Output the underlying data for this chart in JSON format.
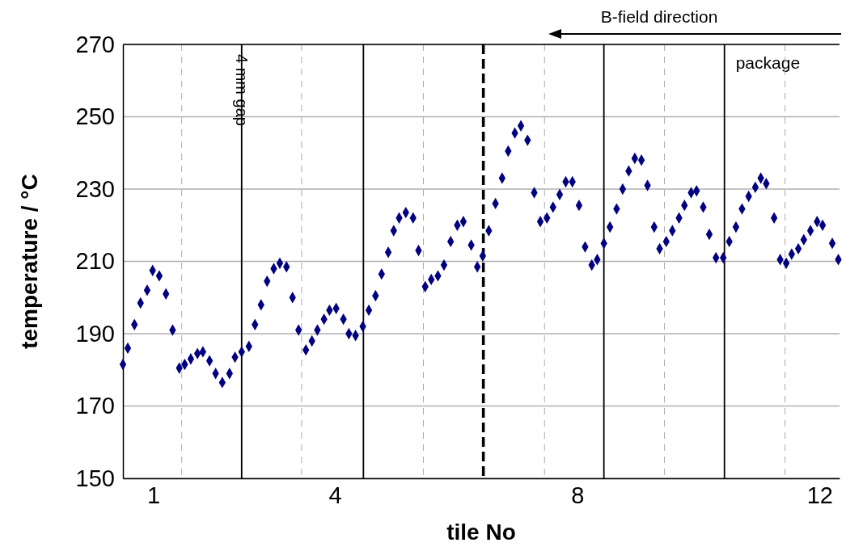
{
  "chart_data": {
    "type": "scatter",
    "xlabel": "tile No",
    "ylabel": "temperature / °C",
    "xlim": [
      0.5,
      12.33
    ],
    "xticks": [
      1,
      4,
      8,
      12
    ],
    "ylim": [
      150,
      270
    ],
    "yticks": [
      150,
      170,
      190,
      210,
      230,
      250,
      270
    ],
    "grid": "y",
    "marker": "diamond",
    "series": [
      {
        "color": "#000080",
        "x": [
          0.5,
          0.58,
          0.69,
          0.79,
          0.9,
          0.99,
          1.1,
          1.21,
          1.32,
          1.43,
          1.52,
          1.62,
          1.73,
          1.82,
          1.93,
          2.03,
          2.14,
          2.26,
          2.35,
          2.46,
          2.58,
          2.68,
          2.78,
          2.88,
          2.99,
          3.09,
          3.2,
          3.3,
          3.4,
          3.52,
          3.62,
          3.71,
          3.82,
          3.91,
          4.02,
          4.14,
          4.23,
          4.34,
          4.46,
          4.56,
          4.67,
          4.77,
          4.88,
          4.97,
          5.06,
          5.17,
          5.29,
          5.38,
          5.49,
          5.59,
          5.7,
          5.8,
          5.91,
          6.02,
          6.12,
          6.25,
          6.35,
          6.44,
          6.54,
          6.65,
          6.76,
          6.86,
          6.97,
          7.07,
          7.18,
          7.29,
          7.39,
          7.5,
          7.6,
          7.71,
          7.81,
          7.92,
          8.03,
          8.13,
          8.24,
          8.33,
          8.44,
          8.54,
          8.65,
          8.75,
          8.85,
          8.95,
          9.06,
          9.16,
          9.27,
          9.36,
          9.47,
          9.57,
          9.68,
          9.77,
          9.88,
          9.97,
          10.08,
          10.18,
          10.29,
          10.41,
          10.51,
          10.62,
          10.72,
          10.83,
          10.94,
          11.03,
          11.12,
          11.25,
          11.35,
          11.45,
          11.54,
          11.65,
          11.74,
          11.85,
          11.96,
          12.05,
          12.21,
          12.31
        ],
        "values": [
          181.5,
          186,
          192.5,
          198.5,
          202,
          207.5,
          206,
          201,
          191,
          180.5,
          181.5,
          183,
          184.5,
          185,
          182.5,
          179,
          176.5,
          179,
          183.5,
          185,
          186.5,
          192.5,
          198,
          204.5,
          208,
          209.5,
          208.5,
          200,
          191,
          185.5,
          188,
          191,
          194,
          196.5,
          197,
          194,
          190,
          189.5,
          192,
          196.5,
          200.5,
          206.5,
          212.5,
          218.5,
          222,
          223.5,
          222,
          213,
          203,
          205,
          206,
          209,
          215.5,
          220,
          221,
          214.5,
          208.5,
          211.5,
          218.5,
          226,
          233,
          240.5,
          245.5,
          247.5,
          243.5,
          229,
          221,
          222,
          225,
          228.5,
          232,
          232,
          225.5,
          214,
          209,
          210.5,
          215,
          219.5,
          224.5,
          230,
          235,
          238.5,
          238,
          231,
          219.5,
          213.5,
          215.5,
          218.5,
          222,
          225.5,
          229,
          229.5,
          225,
          217.5,
          211,
          211,
          215.5,
          219.5,
          224.5,
          228,
          230.5,
          233,
          231.5,
          222,
          210.5,
          209.5,
          212,
          213.5,
          216,
          218.5,
          221,
          220,
          215,
          210.5
        ]
      }
    ],
    "ref_lines": [
      {
        "axis": "x",
        "value": 1.47,
        "color": "#aaaaaa",
        "line_style": "dashed"
      },
      {
        "axis": "x",
        "value": 2.46,
        "color": "#000000",
        "line_style": "solid",
        "label": "4 mm gap"
      },
      {
        "axis": "x",
        "value": 3.45,
        "color": "#aaaaaa",
        "line_style": "dashed"
      },
      {
        "axis": "x",
        "value": 4.47,
        "color": "#000000",
        "line_style": "solid"
      },
      {
        "axis": "x",
        "value": 5.46,
        "color": "#aaaaaa",
        "line_style": "dashed"
      },
      {
        "axis": "x",
        "value": 6.45,
        "color": "#000000",
        "line_style": "dashed"
      },
      {
        "axis": "x",
        "value": 7.46,
        "color": "#aaaaaa",
        "line_style": "dashed"
      },
      {
        "axis": "x",
        "value": 8.44,
        "color": "#000000",
        "line_style": "solid"
      },
      {
        "axis": "x",
        "value": 9.44,
        "color": "#aaaaaa",
        "line_style": "dashed"
      },
      {
        "axis": "x",
        "value": 10.43,
        "color": "#000000",
        "line_style": "solid",
        "label": "package"
      },
      {
        "axis": "x",
        "value": 11.43,
        "color": "#aaaaaa",
        "line_style": "dashed"
      }
    ],
    "annotations": [
      "B-field direction"
    ]
  }
}
